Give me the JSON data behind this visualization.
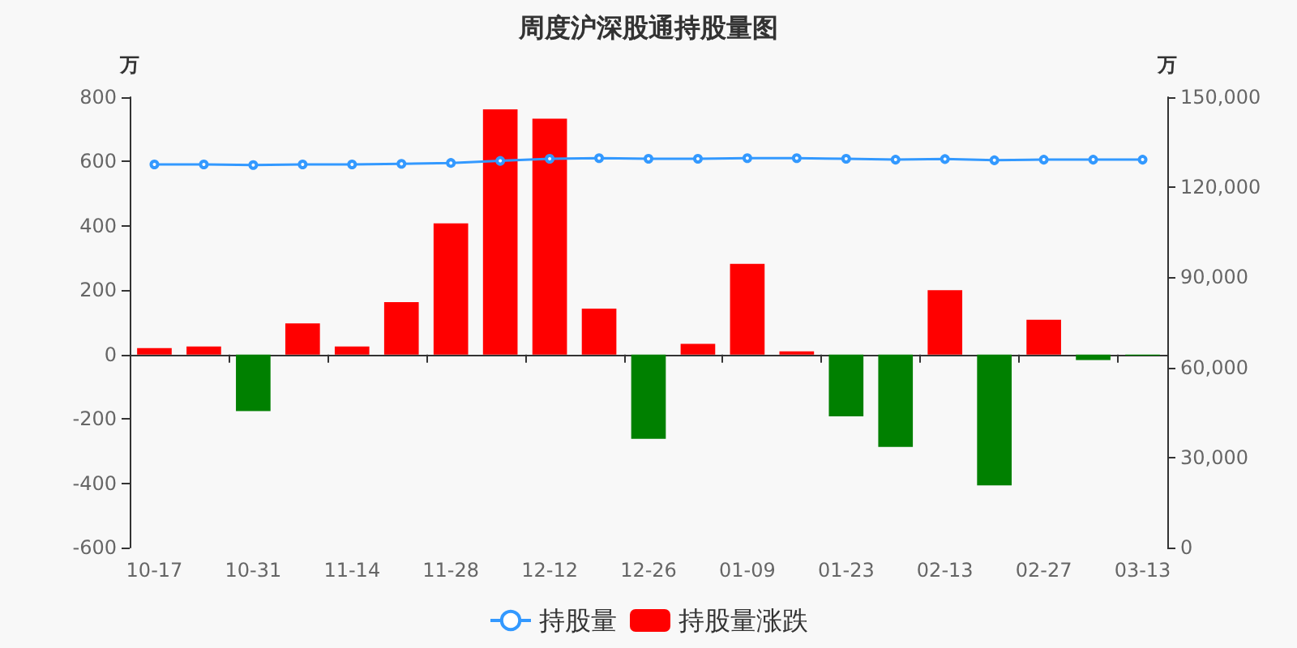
{
  "chart_data": {
    "type": "bar",
    "title": "周度沪深股通持股量图",
    "ylabel": "万",
    "y2label": "万",
    "categories": [
      "10-17",
      null,
      "10-31",
      null,
      "11-14",
      null,
      "11-28",
      null,
      "12-12",
      null,
      "12-26",
      null,
      "01-09",
      null,
      "01-23",
      null,
      "02-13",
      null,
      "02-27",
      null,
      "03-13"
    ],
    "series": [
      {
        "name": "持股量",
        "type": "line",
        "axis": "y2",
        "color": "#3399ff",
        "values": [
          127600,
          127600,
          127400,
          127600,
          127600,
          127800,
          128100,
          128800,
          129500,
          129700,
          129500,
          129500,
          129700,
          129700,
          129500,
          129200,
          129400,
          129000,
          129200,
          129200,
          129200
        ]
      },
      {
        "name": "持股量涨跌",
        "type": "bar",
        "color": "#ff0000",
        "colors": [
          "#ff0000",
          "#ff0000",
          "#008000",
          "#ff0000",
          "#ff0000",
          "#ff0000",
          "#ff0000",
          "#ff0000",
          "#ff0000",
          "#ff0000",
          "#008000",
          "#ff0000",
          "#ff0000",
          "#ff0000",
          "#008000",
          "#008000",
          "#ff0000",
          "#008000",
          "#ff0000",
          "#008000",
          "#008000"
        ],
        "values": [
          20,
          25,
          -176,
          97,
          25,
          163,
          408,
          762,
          733,
          143,
          -262,
          33,
          282,
          10,
          -192,
          -287,
          200,
          -407,
          108,
          -17,
          -3
        ]
      }
    ],
    "ylim": [
      -600,
      800
    ],
    "yticks": [
      -600,
      -400,
      -200,
      0,
      200,
      400,
      600,
      800
    ],
    "y2lim": [
      0,
      150000
    ],
    "y2ticks": [
      0,
      {
        "value": 30000,
        "label": "30,000"
      },
      {
        "value": 60000,
        "label": "60,000"
      },
      {
        "value": 90000,
        "label": "90,000"
      },
      {
        "value": 120000,
        "label": "120,000"
      },
      {
        "value": 150000,
        "label": "150,000"
      }
    ],
    "marker": "circle",
    "legend": "bottom"
  }
}
